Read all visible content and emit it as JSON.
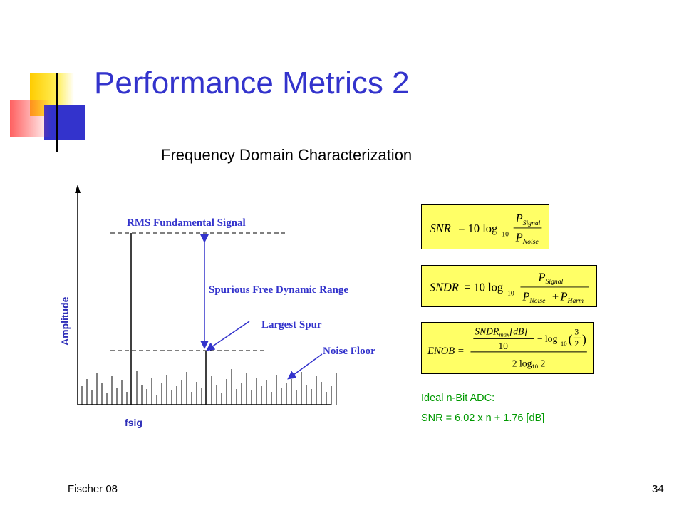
{
  "slide": {
    "title": "Performance Metrics 2",
    "subtitle": "Frequency Domain Characterization",
    "footer_left": "Fischer 08",
    "page_number": "34"
  },
  "diagram": {
    "y_axis_label": "Amplitude",
    "x_axis_label": "fsig",
    "labels": {
      "fundamental": "RMS Fundamental Signal",
      "sfdr": "Spurious Free Dynamic Range",
      "largest_spur": "Largest Spur",
      "noise_floor": "Noise Floor"
    },
    "colors": {
      "annotation": "#3333cc",
      "axis_labels": "#2e2eb8",
      "lines": "#000000"
    }
  },
  "equations": {
    "snr": {
      "lhs": "SNR",
      "coef": "= 10 log",
      "sub": "10",
      "num": "P",
      "num_sub": "Signal",
      "den": "P",
      "den_sub": "Noise"
    },
    "sndr": {
      "lhs": "SNDR",
      "coef": "= 10 log",
      "sub": "10",
      "num": "P",
      "num_sub": "Signal",
      "den": "P",
      "den_sub": "Noise",
      "plus": "+",
      "den2": "P",
      "den2_sub": "Harm"
    },
    "enob": {
      "lhs": "ENOB =",
      "sndr": "SNDR",
      "sndr_sub": "max",
      "unit": "[dB]",
      "ten": "10",
      "minus_log": "− log",
      "log_sub": "10",
      "three": "3",
      "two": "2",
      "den": "2 log",
      "den_sub": "10",
      "den_tail": " 2"
    },
    "box_color": "#ffff66"
  },
  "ideal_adc": {
    "line1": "Ideal n-Bit ADC:",
    "line2": "SNR = 6.02 x n + 1.76 [dB]",
    "color": "#009900"
  }
}
